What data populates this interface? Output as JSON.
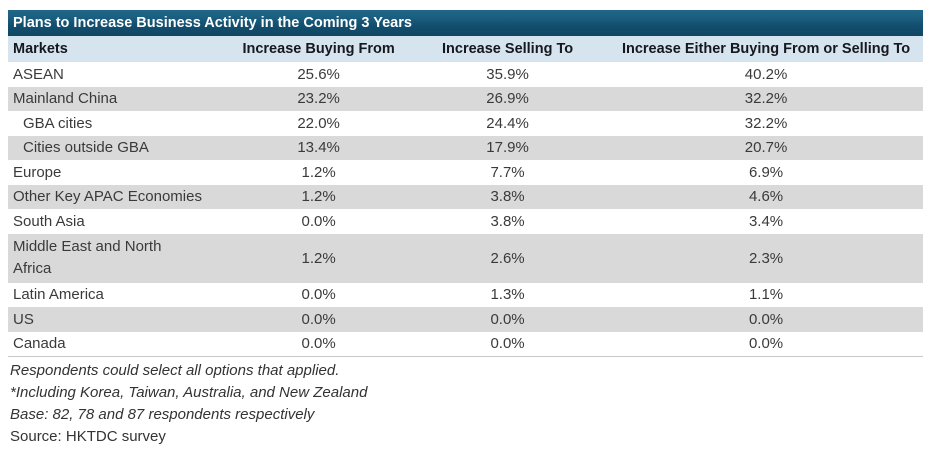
{
  "table": {
    "title": "Plans to Increase Business Activity in the Coming 3 Years",
    "columns": [
      "Markets",
      "Increase Buying From",
      "Increase Selling To",
      "Increase Either Buying From or Selling To"
    ],
    "rows": [
      {
        "market": "ASEAN",
        "indent": false,
        "wrap": false,
        "buying": "25.6%",
        "selling": "35.9%",
        "either": "40.2%"
      },
      {
        "market": "Mainland China",
        "indent": false,
        "wrap": false,
        "buying": "23.2%",
        "selling": "26.9%",
        "either": "32.2%"
      },
      {
        "market": "GBA cities",
        "indent": true,
        "wrap": false,
        "buying": "22.0%",
        "selling": "24.4%",
        "either": "32.2%"
      },
      {
        "market": "Cities outside GBA",
        "indent": true,
        "wrap": false,
        "buying": "13.4%",
        "selling": "17.9%",
        "either": "20.7%"
      },
      {
        "market": "Europe",
        "indent": false,
        "wrap": false,
        "buying": "1.2%",
        "selling": "7.7%",
        "either": "6.9%"
      },
      {
        "market": "Other Key APAC Economies",
        "indent": false,
        "wrap": false,
        "buying": "1.2%",
        "selling": "3.8%",
        "either": "4.6%"
      },
      {
        "market": "South Asia",
        "indent": false,
        "wrap": false,
        "buying": "0.0%",
        "selling": "3.8%",
        "either": "3.4%"
      },
      {
        "market": "Middle East and North Africa",
        "indent": false,
        "wrap": true,
        "buying": "1.2%",
        "selling": "2.6%",
        "either": "2.3%"
      },
      {
        "market": "Latin America",
        "indent": false,
        "wrap": false,
        "buying": "0.0%",
        "selling": "1.3%",
        "either": "1.1%"
      },
      {
        "market": "US",
        "indent": false,
        "wrap": false,
        "buying": "0.0%",
        "selling": "0.0%",
        "either": "0.0%"
      },
      {
        "market": "Canada",
        "indent": false,
        "wrap": false,
        "buying": "0.0%",
        "selling": "0.0%",
        "either": "0.0%"
      }
    ]
  },
  "footnotes": [
    {
      "text": "Respondents could select all options that applied.",
      "italic": true
    },
    {
      "text": "*Including Korea, Taiwan, Australia, and New Zealand",
      "italic": true
    },
    {
      "text": "Base: 82, 78 and 87 respondents respectively",
      "italic": true
    },
    {
      "text": "Source: HKTDC survey",
      "italic": false
    }
  ],
  "colors": {
    "title_bar_top": "#20678a",
    "title_bar_bottom": "#114763",
    "header_row_bg": "#d6e4f0",
    "row_alt_bg": "#d9d9d9",
    "row_bg": "#ffffff",
    "body_text": "#3a3a3a",
    "title_text": "#ffffff"
  },
  "chart_data": {
    "type": "table",
    "title": "Plans to Increase Business Activity in the Coming 3 Years",
    "categories": [
      "ASEAN",
      "Mainland China",
      "GBA cities",
      "Cities outside GBA",
      "Europe",
      "Other Key APAC Economies",
      "South Asia",
      "Middle East and North Africa",
      "Latin America",
      "US",
      "Canada"
    ],
    "series": [
      {
        "name": "Increase Buying From",
        "values": [
          25.6,
          23.2,
          22.0,
          13.4,
          1.2,
          1.2,
          0.0,
          1.2,
          0.0,
          0.0,
          0.0
        ]
      },
      {
        "name": "Increase Selling To",
        "values": [
          35.9,
          26.9,
          24.4,
          17.9,
          7.7,
          3.8,
          3.8,
          2.6,
          1.3,
          0.0,
          0.0
        ]
      },
      {
        "name": "Increase Either Buying From or Selling To",
        "values": [
          40.2,
          32.2,
          32.2,
          20.7,
          6.9,
          4.6,
          3.4,
          2.3,
          1.1,
          0.0,
          0.0
        ]
      }
    ],
    "units": "percent",
    "notes": [
      "Respondents could select all options that applied.",
      "*Including Korea, Taiwan, Australia, and New Zealand",
      "Base: 82, 78 and 87 respondents respectively",
      "Source: HKTDC survey"
    ]
  }
}
